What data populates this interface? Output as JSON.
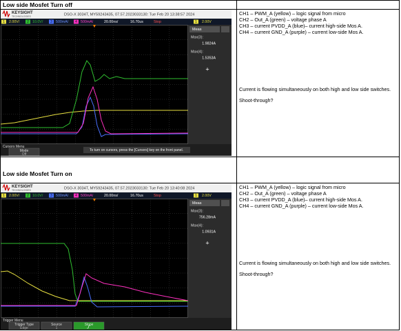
{
  "sections": [
    {
      "heading": "Low side Mosfet Turn off",
      "scope": {
        "brand": "KEYSIGHT",
        "brand_sub": "TECHNOLOGIES",
        "header": "DSO-X 3034T, MY59243435, 07.57.2023033130: Tue Feb 20 13:38:57 2024",
        "toolbar": [
          "1",
          "2.00V/",
          "2",
          "10.0V/",
          "3",
          "500mA/",
          "4",
          "500mA/",
          "20.00ns/",
          "16.70us",
          "Stop",
          "1",
          "2.00V"
        ],
        "meas_title": "Meas",
        "measurements": [
          {
            "label": "Max(3):",
            "value": "1.9824A"
          },
          {
            "label": "Max(4):",
            "value": "1.5353A"
          }
        ],
        "menu": "Cursors Menu",
        "softkeys": [
          {
            "title": "Mode",
            "value": "Off"
          }
        ],
        "message": "To turn on cursors, press the [Cursors] key on the front panel."
      },
      "notes": [
        "CH1 – PWM_A (yellow) – logic signal from micro",
        "CH2 – Out_A (green) – voltage phase A",
        "CH3 – current PVDD_A (blue)– current high-side Mos A.",
        "CH4 – current GND_A (purple) – current low-side Mos A.",
        "Current is flowing simultaneously on both high and low side switches.",
        "Shoot-through?"
      ]
    },
    {
      "heading": "Low side Mosfet Turn on",
      "scope": {
        "brand": "KEYSIGHT",
        "brand_sub": "TECHNOLOGIES",
        "header": "DSO-X 3034T, MY59243435, 07.57.2023033130: Tue Feb 20 13:40:08 2024",
        "toolbar": [
          "1",
          "2.00V/",
          "2",
          "10.0V/",
          "3",
          "500mA/",
          "4",
          "500mA/",
          "20.00ns/",
          "16.70us",
          "Stop",
          "1",
          "2.00V"
        ],
        "meas_title": "Meas",
        "measurements": [
          {
            "label": "Max(3):",
            "value": "756.28mA"
          },
          {
            "label": "Max(4):",
            "value": "1.0931A"
          }
        ],
        "menu": "Trigger Menu",
        "softkeys": [
          {
            "title": "Trigger Type",
            "value": "Edge"
          },
          {
            "title": "Source",
            "value": "1"
          },
          {
            "title": "Slope",
            "active": true
          }
        ]
      },
      "notes": [
        "CH1 – PWM_A (yellow) – logic signal from micro",
        "CH2 – Out_A (green) – voltage phase A",
        "CH3 – current PVDD_A (blue)– current high-side Mos A.",
        "CH4 – current GND_A (purple) – current low-side Mos A.",
        "Current is flowing simultaneously on both high and low side switches.",
        "Shoot-through?"
      ]
    }
  ]
}
